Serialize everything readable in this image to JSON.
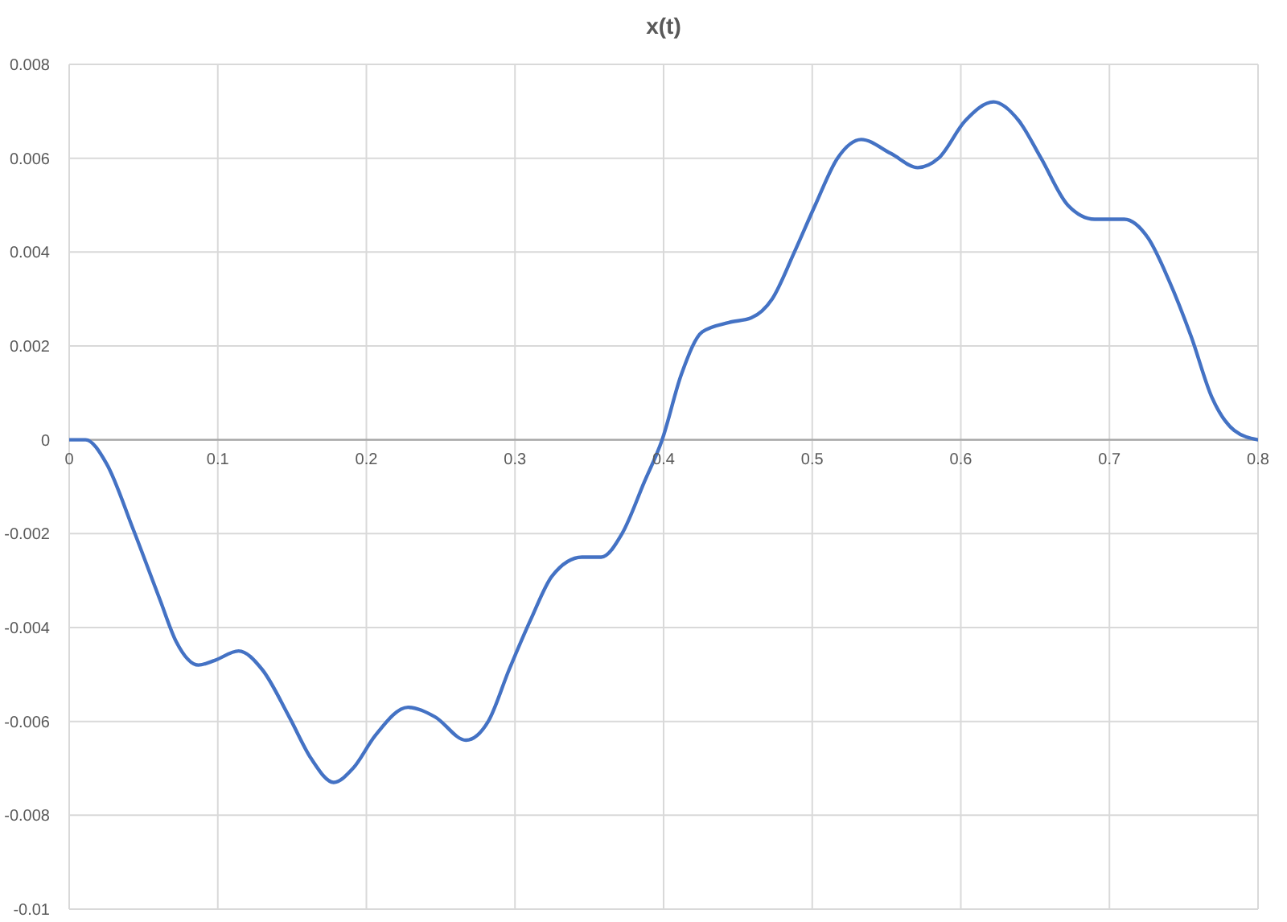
{
  "chart_data": {
    "type": "line",
    "title": "x(t)",
    "x": [
      0,
      0.011,
      0.025,
      0.043,
      0.061,
      0.072,
      0.087,
      0.098,
      0.114,
      0.13,
      0.148,
      0.163,
      0.178,
      0.191,
      0.206,
      0.228,
      0.246,
      0.267,
      0.282,
      0.296,
      0.311,
      0.325,
      0.345,
      0.358,
      0.372,
      0.387,
      0.399,
      0.412,
      0.426,
      0.444,
      0.459,
      0.473,
      0.488,
      0.502,
      0.517,
      0.533,
      0.553,
      0.571,
      0.585,
      0.603,
      0.622,
      0.639,
      0.654,
      0.672,
      0.69,
      0.71,
      0.726,
      0.74,
      0.755,
      0.769,
      0.784,
      0.8
    ],
    "series": [
      {
        "color": "#4472c4",
        "values": [
          0,
          0,
          -0.0005,
          -0.0019,
          -0.0034,
          -0.0043,
          -0.0048,
          -0.0047,
          -0.0045,
          -0.0049,
          -0.0059,
          -0.0068,
          -0.0073,
          -0.007,
          -0.0063,
          -0.0057,
          -0.0059,
          -0.0064,
          -0.006,
          -0.0049,
          -0.0038,
          -0.0029,
          -0.0025,
          -0.0025,
          -0.002,
          -0.0009,
          0,
          0.0014,
          0.0023,
          0.0025,
          0.0026,
          0.003,
          0.004,
          0.005,
          0.006,
          0.0064,
          0.0061,
          0.0058,
          0.006,
          0.0068,
          0.0072,
          0.0068,
          0.006,
          0.005,
          0.0047,
          0.0047,
          0.0043,
          0.0034,
          0.0022,
          0.0009,
          0.0002,
          0
        ]
      }
    ],
    "xlim": [
      0,
      0.8
    ],
    "xticks": [
      0,
      0.1,
      0.2,
      0.3,
      0.4,
      0.5,
      0.6,
      0.7,
      0.8
    ],
    "ylim": [
      -0.01,
      0.008
    ],
    "yticks": [
      -0.01,
      -0.008,
      -0.006,
      -0.004,
      -0.002,
      0,
      0.002,
      0.004,
      0.006,
      0.008
    ],
    "grid": true,
    "marker": "none",
    "line_style": "solid"
  }
}
